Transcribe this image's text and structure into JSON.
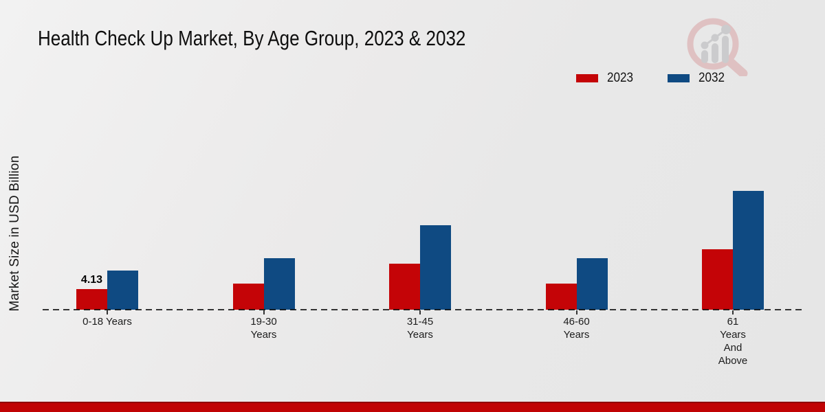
{
  "header": {
    "title": "Health Check Up Market, By Age Group, 2023 & 2032"
  },
  "icons": {
    "logo": "magnifier-bar-chart-watermark-logo"
  },
  "chart_data": {
    "type": "bar",
    "title": "Health Check Up Market, By Age Group, 2023 & 2032",
    "xlabel": "",
    "ylabel": "Market Size in USD Billion",
    "categories": [
      "0-18 Years",
      "19-30 Years",
      "31-45 Years",
      "46-60 Years",
      "61 Years And Above"
    ],
    "category_label_lines": [
      [
        "0-18 Years"
      ],
      [
        "19-30",
        "Years"
      ],
      [
        "31-45",
        "Years"
      ],
      [
        "46-60",
        "Years"
      ],
      [
        "61",
        "Years",
        "And",
        "Above"
      ]
    ],
    "series": [
      {
        "name": "2023",
        "color": "#c40407",
        "values": [
          4.13,
          5.2,
          9.2,
          5.2,
          12.1
        ]
      },
      {
        "name": "2032",
        "color": "#0f4a82",
        "values": [
          7.9,
          10.3,
          16.9,
          10.3,
          23.8
        ]
      }
    ],
    "annotations": [
      {
        "series": "2023",
        "category_index": 0,
        "text": "4.13"
      }
    ],
    "ylim": [
      0,
      25
    ],
    "grid": false,
    "legend_position": "top-right",
    "baseline_style": "dashed",
    "note": "Only the first 2023 bar carries a printed data label (4.13); other values estimated from bar heights."
  },
  "footer": {
    "accent_color": "#c00304"
  }
}
